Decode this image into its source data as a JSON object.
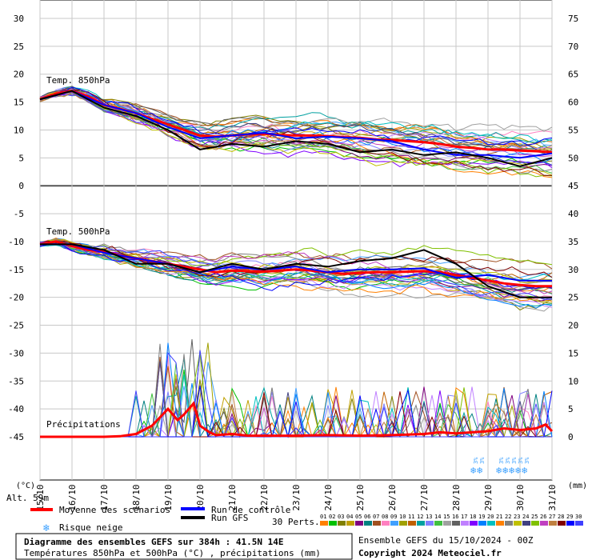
{
  "chart_data": {
    "type": "line",
    "title": "Diagramme des ensembles GEFS sur 384h : 41.5N 14E",
    "subtitle": "Températures 850hPa et 500hPa (°C) , précipitations (mm)",
    "run_info": "Ensemble GEFS du 15/10/2024 - 00Z",
    "copyright": "Copyright 2024 Meteociel.fr",
    "altitude": "Alt. 59m",
    "left_unit": "(°C)",
    "right_unit": "(mm)",
    "left_ticks": [
      30,
      25,
      20,
      15,
      10,
      5,
      0,
      -5,
      -10,
      -15,
      -20,
      -25,
      -30,
      -35,
      -40,
      -45
    ],
    "right_ticks": [
      75,
      70,
      65,
      60,
      55,
      50,
      45,
      40,
      35,
      30,
      25,
      20,
      15,
      10,
      5,
      0
    ],
    "x_labels": [
      "15/10",
      "16/10",
      "17/10",
      "18/10",
      "19/10",
      "20/10",
      "21/10",
      "22/10",
      "23/10",
      "24/10",
      "25/10",
      "26/10",
      "27/10",
      "28/10",
      "29/10",
      "30/10",
      "31/10"
    ],
    "ylim_left": [
      -45,
      30
    ],
    "ylim_right": [
      0,
      75
    ],
    "panel_labels": {
      "t850": "Temp. 850hPa",
      "t500": "Temp. 500hPa",
      "precip": "Précipitations"
    },
    "legend": {
      "mean": "Moyenne des scénarios",
      "control": "Run de contrôle",
      "gfs": "Run GFS",
      "snow": "Risque neige",
      "perts": "30 Perts."
    },
    "member_labels": [
      "01",
      "02",
      "03",
      "04",
      "05",
      "06",
      "07",
      "08",
      "09",
      "10",
      "11",
      "12",
      "13",
      "14",
      "15",
      "16",
      "17",
      "18",
      "19",
      "20",
      "21",
      "22",
      "23",
      "24",
      "25",
      "26",
      "27",
      "28",
      "29",
      "30"
    ],
    "member_colors": [
      "#ff7f00",
      "#00c000",
      "#808000",
      "#c0a000",
      "#800080",
      "#008080",
      "#a05020",
      "#ff80c0",
      "#40a0ff",
      "#a0a000",
      "#c06000",
      "#00a0a0",
      "#8080ff",
      "#40c040",
      "#a0a0a0",
      "#606060",
      "#c080ff",
      "#8000ff",
      "#0080ff",
      "#00c0c0",
      "#ff8000",
      "#808080",
      "#c0c000",
      "#404080",
      "#80c000",
      "#c040c0",
      "#c08040",
      "#800000",
      "#0000ff",
      "#4040ff"
    ],
    "colors": {
      "mean": "#ff0000",
      "control": "#0000ff",
      "gfs": "#000000"
    },
    "snow_days": [
      28.6,
      28.8,
      29.4,
      29.6,
      29.8,
      30.0,
      30.2
    ],
    "series": [
      {
        "name": "Moyenne des scénarios",
        "panel": "t850",
        "x": [
          15.0,
          15.5,
          16.0,
          16.5,
          17.0,
          17.5,
          18.0,
          18.5,
          19.0,
          19.5,
          20.0,
          20.5,
          21.0,
          21.5,
          22.0,
          22.5,
          23.0,
          23.5,
          24.0,
          24.5,
          25.0,
          25.5,
          26.0,
          26.5,
          27.0,
          27.5,
          28.0,
          28.5,
          29.0,
          29.5,
          30.0,
          30.5,
          31.0
        ],
        "y": [
          15.5,
          16.5,
          17,
          16,
          14.5,
          13.8,
          13,
          12,
          11,
          10,
          9,
          8.8,
          9,
          9.2,
          9.3,
          9.1,
          9,
          9,
          8.9,
          8.7,
          8.6,
          8.3,
          8.2,
          8,
          7.8,
          7.5,
          7,
          6.8,
          6.5,
          6.5,
          6.3,
          6.2,
          6
        ]
      },
      {
        "name": "Run de contrôle",
        "panel": "t850",
        "x": [
          15.0,
          16.0,
          17.0,
          18.0,
          19.0,
          20.0,
          21.0,
          22.0,
          23.0,
          24.0,
          25.0,
          26.0,
          27.0,
          28.0,
          29.0,
          30.0,
          31.0
        ],
        "y": [
          15.5,
          17,
          14.5,
          13,
          10.5,
          8.5,
          9,
          9.5,
          8.5,
          8.8,
          8.5,
          8,
          6.5,
          5.5,
          5.5,
          5,
          5.8
        ]
      },
      {
        "name": "Run GFS",
        "panel": "t850",
        "x": [
          15.0,
          16.0,
          17.0,
          18.0,
          19.0,
          20.0,
          21.0,
          22.0,
          23.0,
          24.0,
          25.0,
          26.0,
          27.0,
          28.0,
          29.0,
          30.0,
          31.0
        ],
        "y": [
          15.5,
          17,
          14,
          12.5,
          10,
          6.5,
          7.5,
          7,
          8,
          7.5,
          6,
          6.5,
          5.5,
          6,
          5,
          3.5,
          5
        ]
      },
      {
        "name": "Moyenne des scénarios",
        "panel": "t500",
        "x": [
          15.0,
          15.5,
          16.0,
          16.5,
          17.0,
          17.5,
          18.0,
          18.5,
          19.0,
          19.5,
          20.0,
          20.5,
          21.0,
          21.5,
          22.0,
          22.5,
          23.0,
          23.5,
          24.0,
          24.5,
          25.0,
          25.5,
          26.0,
          26.5,
          27.0,
          27.5,
          28.0,
          28.5,
          29.0,
          29.5,
          30.0,
          30.5,
          31.0
        ],
        "y": [
          -10.5,
          -10,
          -10.8,
          -11.5,
          -11.8,
          -12.5,
          -13,
          -13.5,
          -14,
          -14.5,
          -15,
          -15.5,
          -15.2,
          -15.3,
          -15.4,
          -15.2,
          -15,
          -15.2,
          -15.5,
          -15.8,
          -15.6,
          -15.5,
          -15.5,
          -15.4,
          -15.3,
          -15.5,
          -16,
          -16.5,
          -17,
          -17.5,
          -17.8,
          -18,
          -18
        ]
      },
      {
        "name": "Run de contrôle",
        "panel": "t500",
        "x": [
          15.0,
          16.0,
          17.0,
          18.0,
          19.0,
          20.0,
          21.0,
          22.0,
          23.0,
          24.0,
          25.0,
          26.0,
          27.0,
          28.0,
          29.0,
          30.0,
          31.0
        ],
        "y": [
          -10.5,
          -10.5,
          -12,
          -13,
          -14,
          -15.5,
          -14.5,
          -15,
          -14.5,
          -15.5,
          -15,
          -15,
          -14.8,
          -16.5,
          -16,
          -17,
          -17
        ]
      },
      {
        "name": "Run GFS",
        "panel": "t500",
        "x": [
          15.0,
          16.0,
          17.0,
          18.0,
          19.0,
          20.0,
          21.0,
          22.0,
          23.0,
          24.0,
          25.0,
          26.0,
          27.0,
          28.0,
          29.0,
          30.0,
          31.0
        ],
        "y": [
          -10.5,
          -10.5,
          -11.5,
          -14,
          -14,
          -15.5,
          -14,
          -15,
          -14,
          -14.5,
          -13.5,
          -13,
          -11.5,
          -14,
          -18,
          -20,
          -20
        ]
      },
      {
        "name": "Moyenne des scénarios",
        "panel": "precip",
        "x": [
          15.0,
          16.0,
          17.0,
          17.5,
          18.0,
          18.5,
          19.0,
          19.3,
          19.5,
          19.8,
          20.0,
          20.3,
          20.5,
          21.0,
          21.5,
          22.0,
          23.0,
          24.0,
          25.0,
          26.0,
          27.0,
          27.5,
          28.0,
          28.5,
          29.0,
          29.5,
          30.0,
          30.5,
          30.8,
          31.0
        ],
        "y": [
          0,
          0,
          0,
          0.1,
          0.5,
          2,
          5,
          3,
          4,
          6,
          2,
          0.8,
          0.3,
          0.5,
          0.2,
          0.2,
          0.2,
          0.3,
          0.2,
          0.3,
          0.5,
          0.8,
          0.6,
          0.8,
          1,
          1.5,
          1.2,
          1.5,
          2.2,
          1
        ]
      }
    ]
  }
}
